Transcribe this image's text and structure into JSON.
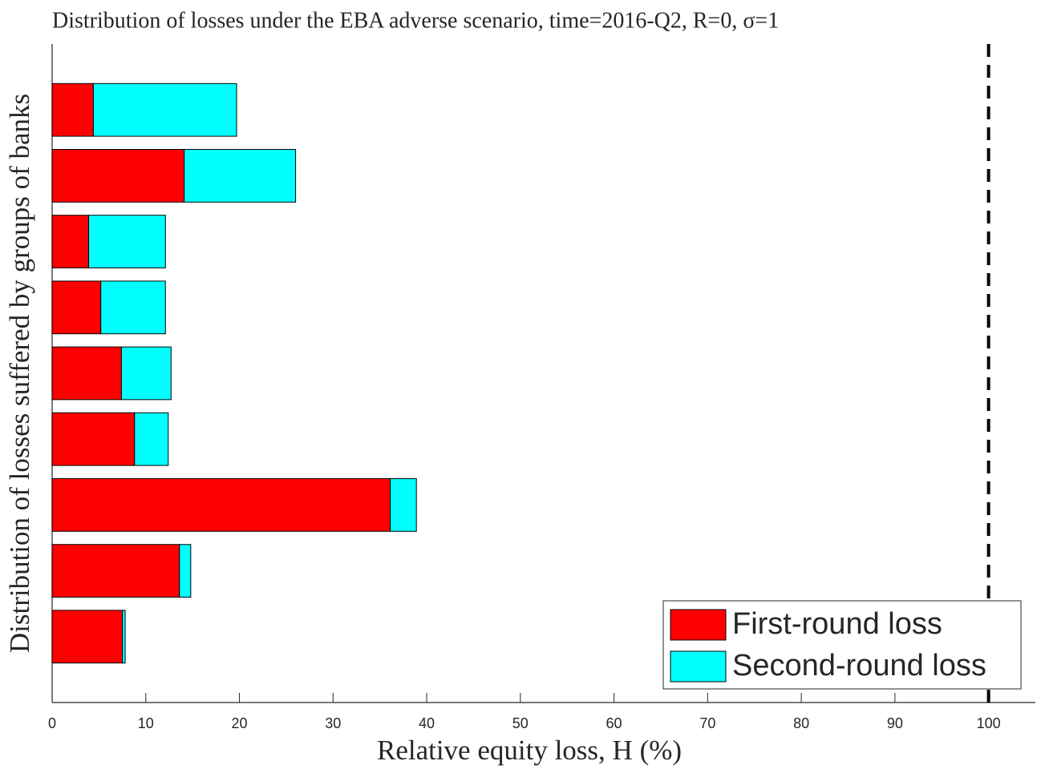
{
  "chart_data": {
    "type": "barh_stacked",
    "title": "Distribution of losses under the EBA adverse scenario, time=2016-Q2, R=0, σ=1",
    "xlabel": "Relative equity loss, H (%)",
    "ylabel": "Distribution of losses suffered by groups of banks",
    "categories": [
      null,
      null,
      null,
      null,
      null,
      null,
      null,
      null,
      null
    ],
    "series": [
      {
        "name": "First-round loss",
        "color": "#ff0000",
        "values": [
          4.4,
          14.1,
          3.9,
          5.2,
          7.4,
          8.8,
          36.1,
          13.6,
          7.5
        ]
      },
      {
        "name": "Second-round loss",
        "color": "#00ffff",
        "values": [
          15.3,
          11.9,
          8.2,
          6.9,
          5.3,
          3.6,
          2.8,
          1.2,
          0.3
        ]
      }
    ],
    "xlim": [
      0,
      105
    ],
    "xticks": [
      0,
      10,
      20,
      30,
      40,
      50,
      60,
      70,
      80,
      90,
      100
    ],
    "vline": 100,
    "legend": "lower right"
  }
}
